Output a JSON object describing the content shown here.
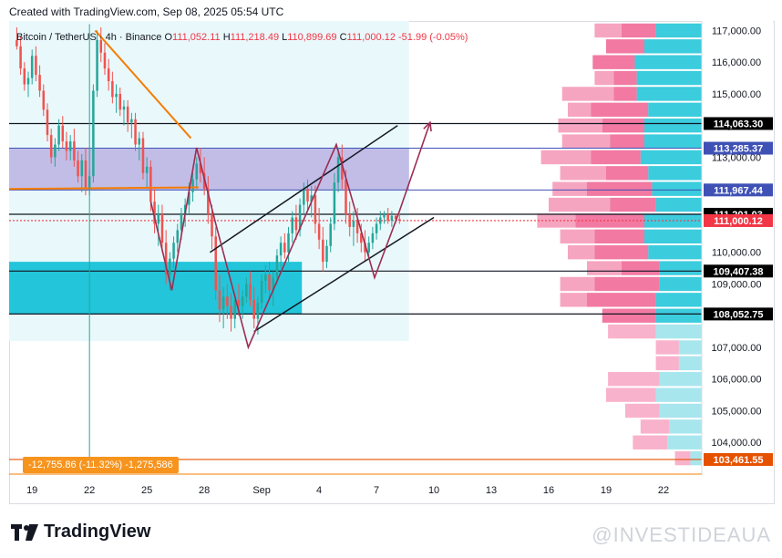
{
  "caption": "Created with TradingView.com, Sep 08, 2025 05:54 UTC",
  "legend": {
    "symbol": "Bitcoin / TetherUS · 4h · Binance",
    "open_label": "O",
    "open": "111,052.11",
    "high_label": "H",
    "high": "111,218.49",
    "low_label": "L",
    "low": "110,899.69",
    "close_label": "C",
    "close": "111,000.12",
    "change": "-51.99 (-0.05%)"
  },
  "drawdown": "-12,755.86 (-11.32%) -1,275,586",
  "brand": "TradingView",
  "watermark": "@INVESTIDEAUA",
  "colors": {
    "up": "#26a69a",
    "down": "#ef5350",
    "zone_purple": "#b3a9e0",
    "zone_cyan": "#00bcd4",
    "vp_pink": "#f06292",
    "vp_cyan": "#26c6da",
    "orange": "#f57c00",
    "brand_text": "#131722"
  },
  "chart_data": {
    "type": "candlestick",
    "y_axis": {
      "ylim": [
        103000,
        117300
      ],
      "tick_values": [
        104000,
        105000,
        106000,
        107000,
        108000,
        109000,
        110000,
        111000,
        112000,
        113000,
        114000,
        115000,
        116000,
        117000
      ],
      "tick_labels": [
        "104,000.00",
        "105,000.00",
        "106,000.00",
        "107,000.00",
        "108,000.00",
        "109,000.00",
        "110,000.00",
        "111,000.00",
        "112,000.00",
        "113,000.00",
        "114,000.00",
        "115,000.00",
        "116,000.00",
        "117,000.00"
      ]
    },
    "x_axis": {
      "tick_labels": [
        "19",
        "22",
        "25",
        "28",
        "Sep",
        "4",
        "7",
        "10",
        "13",
        "16",
        "19",
        "22"
      ],
      "tick_days": [
        0,
        3,
        6,
        9,
        12,
        15,
        18,
        21,
        24,
        27,
        30,
        33
      ],
      "xlim_days": [
        -1.2,
        35.0
      ],
      "last_candle_day": 19.2
    },
    "price_levels": [
      {
        "value": 114063.3,
        "label": "114,063.30",
        "color": "#131722"
      },
      {
        "value": 113285.37,
        "label": "113,285.37",
        "color": "#3f51b5"
      },
      {
        "value": 111967.44,
        "label": "111,967.44",
        "color": "#3f51b5"
      },
      {
        "value": 111201.03,
        "label": "111,201.03",
        "color": "#131722"
      },
      {
        "value": 111000.12,
        "label": "111,000.12",
        "color": "#f23645"
      },
      {
        "value": 109407.38,
        "label": "109,407.38",
        "color": "#131722"
      },
      {
        "value": 108052.75,
        "label": "108,052.75",
        "color": "#131722"
      },
      {
        "value": 103461.55,
        "label": "103,461.55",
        "color": "#e65100"
      }
    ],
    "zones": [
      {
        "name": "supply-zone",
        "from": 111967.44,
        "to": 113285.37,
        "start_day": -1.2,
        "end_day": 19.7,
        "color": "#b3a9e0"
      },
      {
        "name": "demand-zone",
        "from": 108052.75,
        "to": 109700,
        "start_day": -1.2,
        "end_day": 14.1,
        "color": "#00bcd4"
      }
    ],
    "candles": [
      {
        "day": -0.8,
        "o": 116700,
        "h": 117100,
        "l": 116400,
        "c": 116500
      },
      {
        "day": -0.6,
        "o": 116500,
        "h": 116800,
        "l": 115600,
        "c": 115800
      },
      {
        "day": -0.4,
        "o": 115800,
        "h": 116000,
        "l": 115100,
        "c": 115300
      },
      {
        "day": -0.2,
        "o": 115300,
        "h": 115700,
        "l": 114900,
        "c": 115500
      },
      {
        "day": 0.0,
        "o": 115500,
        "h": 116400,
        "l": 115300,
        "c": 116200
      },
      {
        "day": 0.2,
        "o": 116200,
        "h": 116500,
        "l": 115400,
        "c": 115600
      },
      {
        "day": 0.4,
        "o": 115600,
        "h": 115900,
        "l": 114900,
        "c": 115100
      },
      {
        "day": 0.6,
        "o": 115100,
        "h": 115300,
        "l": 114300,
        "c": 114500
      },
      {
        "day": 0.8,
        "o": 114500,
        "h": 114700,
        "l": 113500,
        "c": 113700
      },
      {
        "day": 1.0,
        "o": 113700,
        "h": 113900,
        "l": 112800,
        "c": 113000
      },
      {
        "day": 1.2,
        "o": 113000,
        "h": 113600,
        "l": 112700,
        "c": 113400
      },
      {
        "day": 1.4,
        "o": 113400,
        "h": 114200,
        "l": 113200,
        "c": 114000
      },
      {
        "day": 1.6,
        "o": 114000,
        "h": 114300,
        "l": 113300,
        "c": 113500
      },
      {
        "day": 1.8,
        "o": 113500,
        "h": 113800,
        "l": 112900,
        "c": 113200
      },
      {
        "day": 2.0,
        "o": 113200,
        "h": 113700,
        "l": 112900,
        "c": 113500
      },
      {
        "day": 2.2,
        "o": 113500,
        "h": 113900,
        "l": 112700,
        "c": 112900
      },
      {
        "day": 2.4,
        "o": 112900,
        "h": 113200,
        "l": 112200,
        "c": 112400
      },
      {
        "day": 2.6,
        "o": 112400,
        "h": 113100,
        "l": 111900,
        "c": 112900
      },
      {
        "day": 2.8,
        "o": 112900,
        "h": 113300,
        "l": 111800,
        "c": 112000
      },
      {
        "day": 3.0,
        "o": 112000,
        "h": 112600,
        "l": 111800,
        "c": 112400
      },
      {
        "day": 3.2,
        "o": 112400,
        "h": 115300,
        "l": 112200,
        "c": 115100
      },
      {
        "day": 3.4,
        "o": 115100,
        "h": 117000,
        "l": 114900,
        "c": 116700
      },
      {
        "day": 3.6,
        "o": 116700,
        "h": 117100,
        "l": 116000,
        "c": 116300
      },
      {
        "day": 3.8,
        "o": 116300,
        "h": 116600,
        "l": 115600,
        "c": 115800
      },
      {
        "day": 4.0,
        "o": 115800,
        "h": 116100,
        "l": 115100,
        "c": 115400
      },
      {
        "day": 4.2,
        "o": 115400,
        "h": 115700,
        "l": 114700,
        "c": 114900
      },
      {
        "day": 4.4,
        "o": 114900,
        "h": 115300,
        "l": 114400,
        "c": 115000
      },
      {
        "day": 4.6,
        "o": 115000,
        "h": 115200,
        "l": 114300,
        "c": 114500
      },
      {
        "day": 4.8,
        "o": 114500,
        "h": 114800,
        "l": 114000,
        "c": 114600
      },
      {
        "day": 5.0,
        "o": 114600,
        "h": 114800,
        "l": 113800,
        "c": 114100
      },
      {
        "day": 5.2,
        "o": 114100,
        "h": 114400,
        "l": 113600,
        "c": 114200
      },
      {
        "day": 5.4,
        "o": 114200,
        "h": 114400,
        "l": 113200,
        "c": 113400
      },
      {
        "day": 5.6,
        "o": 113400,
        "h": 113800,
        "l": 112900,
        "c": 113600
      },
      {
        "day": 5.8,
        "o": 113600,
        "h": 113800,
        "l": 112300,
        "c": 112500
      },
      {
        "day": 6.0,
        "o": 112500,
        "h": 113000,
        "l": 112000,
        "c": 112700
      },
      {
        "day": 6.2,
        "o": 112700,
        "h": 112900,
        "l": 111300,
        "c": 111600
      },
      {
        "day": 6.4,
        "o": 111600,
        "h": 112000,
        "l": 110600,
        "c": 110900
      },
      {
        "day": 6.6,
        "o": 110900,
        "h": 111500,
        "l": 110200,
        "c": 111200
      },
      {
        "day": 6.8,
        "o": 111200,
        "h": 111500,
        "l": 110000,
        "c": 110300
      },
      {
        "day": 7.0,
        "o": 110300,
        "h": 110700,
        "l": 109000,
        "c": 109300
      },
      {
        "day": 7.2,
        "o": 109300,
        "h": 110000,
        "l": 108800,
        "c": 109800
      },
      {
        "day": 7.4,
        "o": 109800,
        "h": 110500,
        "l": 109500,
        "c": 110300
      },
      {
        "day": 7.6,
        "o": 110300,
        "h": 110900,
        "l": 110000,
        "c": 110700
      },
      {
        "day": 7.8,
        "o": 110700,
        "h": 111400,
        "l": 110400,
        "c": 111200
      },
      {
        "day": 8.0,
        "o": 111200,
        "h": 111700,
        "l": 110800,
        "c": 111500
      },
      {
        "day": 8.2,
        "o": 111500,
        "h": 112200,
        "l": 111200,
        "c": 111900
      },
      {
        "day": 8.4,
        "o": 111900,
        "h": 112500,
        "l": 111600,
        "c": 112300
      },
      {
        "day": 8.6,
        "o": 112300,
        "h": 113000,
        "l": 112000,
        "c": 112800
      },
      {
        "day": 8.8,
        "o": 112800,
        "h": 113300,
        "l": 112200,
        "c": 112500
      },
      {
        "day": 9.0,
        "o": 112500,
        "h": 113000,
        "l": 111800,
        "c": 112000
      },
      {
        "day": 9.2,
        "o": 112000,
        "h": 112400,
        "l": 110900,
        "c": 111200
      },
      {
        "day": 9.4,
        "o": 111200,
        "h": 111500,
        "l": 110100,
        "c": 110500
      },
      {
        "day": 9.6,
        "o": 110500,
        "h": 110800,
        "l": 108500,
        "c": 108800
      },
      {
        "day": 9.8,
        "o": 108800,
        "h": 109300,
        "l": 107800,
        "c": 108200
      },
      {
        "day": 10.0,
        "o": 108200,
        "h": 108900,
        "l": 107600,
        "c": 108600
      },
      {
        "day": 10.2,
        "o": 108600,
        "h": 109000,
        "l": 107900,
        "c": 108300
      },
      {
        "day": 10.4,
        "o": 108300,
        "h": 108700,
        "l": 107500,
        "c": 107900
      },
      {
        "day": 10.6,
        "o": 107900,
        "h": 108700,
        "l": 107600,
        "c": 108500
      },
      {
        "day": 10.8,
        "o": 108500,
        "h": 109000,
        "l": 108000,
        "c": 108300
      },
      {
        "day": 11.0,
        "o": 108300,
        "h": 108800,
        "l": 107900,
        "c": 108600
      },
      {
        "day": 11.2,
        "o": 108600,
        "h": 109200,
        "l": 108400,
        "c": 109000
      },
      {
        "day": 11.4,
        "o": 109000,
        "h": 109400,
        "l": 108300,
        "c": 108500
      },
      {
        "day": 11.6,
        "o": 108500,
        "h": 108900,
        "l": 107600,
        "c": 107900
      },
      {
        "day": 11.8,
        "o": 107900,
        "h": 108600,
        "l": 107400,
        "c": 108400
      },
      {
        "day": 12.0,
        "o": 108400,
        "h": 109300,
        "l": 108200,
        "c": 109100
      },
      {
        "day": 12.2,
        "o": 109100,
        "h": 109600,
        "l": 108700,
        "c": 109300
      },
      {
        "day": 12.4,
        "o": 109300,
        "h": 109700,
        "l": 108500,
        "c": 108800
      },
      {
        "day": 12.6,
        "o": 108800,
        "h": 109400,
        "l": 108300,
        "c": 109200
      },
      {
        "day": 12.8,
        "o": 109200,
        "h": 110100,
        "l": 109000,
        "c": 109900
      },
      {
        "day": 13.0,
        "o": 109900,
        "h": 110500,
        "l": 109500,
        "c": 110300
      },
      {
        "day": 13.2,
        "o": 110300,
        "h": 110600,
        "l": 109800,
        "c": 110000
      },
      {
        "day": 13.4,
        "o": 110000,
        "h": 110800,
        "l": 109700,
        "c": 110600
      },
      {
        "day": 13.6,
        "o": 110600,
        "h": 111300,
        "l": 110300,
        "c": 111100
      },
      {
        "day": 13.8,
        "o": 111100,
        "h": 111500,
        "l": 110400,
        "c": 110700
      },
      {
        "day": 14.0,
        "o": 110700,
        "h": 111700,
        "l": 110500,
        "c": 111500
      },
      {
        "day": 14.2,
        "o": 111500,
        "h": 112200,
        "l": 111200,
        "c": 112000
      },
      {
        "day": 14.4,
        "o": 112000,
        "h": 112300,
        "l": 111300,
        "c": 111600
      },
      {
        "day": 14.6,
        "o": 111600,
        "h": 112100,
        "l": 111100,
        "c": 111800
      },
      {
        "day": 14.8,
        "o": 111800,
        "h": 112100,
        "l": 110600,
        "c": 110900
      },
      {
        "day": 15.0,
        "o": 110900,
        "h": 111400,
        "l": 110100,
        "c": 110400
      },
      {
        "day": 15.2,
        "o": 110400,
        "h": 110800,
        "l": 109400,
        "c": 109700
      },
      {
        "day": 15.4,
        "o": 109700,
        "h": 110400,
        "l": 109500,
        "c": 110200
      },
      {
        "day": 15.6,
        "o": 110200,
        "h": 111100,
        "l": 110000,
        "c": 110900
      },
      {
        "day": 15.8,
        "o": 110900,
        "h": 112500,
        "l": 110700,
        "c": 112200
      },
      {
        "day": 16.0,
        "o": 112200,
        "h": 113300,
        "l": 111900,
        "c": 113000
      },
      {
        "day": 16.2,
        "o": 113000,
        "h": 113400,
        "l": 112000,
        "c": 112300
      },
      {
        "day": 16.4,
        "o": 112300,
        "h": 112600,
        "l": 110900,
        "c": 111200
      },
      {
        "day": 16.6,
        "o": 111200,
        "h": 111600,
        "l": 110500,
        "c": 110800
      },
      {
        "day": 16.8,
        "o": 110800,
        "h": 111300,
        "l": 110200,
        "c": 111000
      },
      {
        "day": 17.0,
        "o": 111000,
        "h": 111400,
        "l": 110300,
        "c": 110600
      },
      {
        "day": 17.2,
        "o": 110600,
        "h": 110900,
        "l": 110000,
        "c": 110300
      },
      {
        "day": 17.4,
        "o": 110300,
        "h": 110700,
        "l": 109700,
        "c": 110000
      },
      {
        "day": 17.6,
        "o": 110000,
        "h": 110500,
        "l": 109800,
        "c": 110300
      },
      {
        "day": 17.8,
        "o": 110300,
        "h": 110800,
        "l": 110100,
        "c": 110600
      },
      {
        "day": 18.0,
        "o": 110600,
        "h": 111100,
        "l": 110400,
        "c": 110900
      },
      {
        "day": 18.2,
        "o": 110900,
        "h": 111300,
        "l": 110700,
        "c": 111100
      },
      {
        "day": 18.4,
        "o": 111100,
        "h": 111300,
        "l": 110900,
        "c": 111200
      },
      {
        "day": 18.6,
        "o": 111200,
        "h": 111400,
        "l": 110900,
        "c": 111000
      },
      {
        "day": 18.8,
        "o": 111000,
        "h": 111300,
        "l": 110800,
        "c": 111150
      },
      {
        "day": 19.0,
        "o": 111150,
        "h": 111220,
        "l": 110900,
        "c": 111052
      },
      {
        "day": 19.2,
        "o": 111052.11,
        "h": 111218.49,
        "l": 110899.69,
        "c": 111000.12
      }
    ],
    "annotations": {
      "orange_downtrend": [
        [
          3.3,
          117000
        ],
        [
          8.3,
          113600
        ]
      ],
      "orange_shelf": [
        [
          -1.2,
          112000
        ],
        [
          8.7,
          112050
        ]
      ],
      "vertical_line_day": 3.0,
      "channel_upper": [
        [
          9.3,
          110000
        ],
        [
          19.1,
          114000
        ]
      ],
      "channel_lower": [
        [
          11.6,
          107500
        ],
        [
          21.0,
          111100
        ]
      ],
      "zigzag": [
        [
          6.2,
          111600
        ],
        [
          7.3,
          108800
        ],
        [
          8.6,
          113300
        ],
        [
          9.6,
          110900
        ],
        [
          11.3,
          107000
        ],
        [
          15.9,
          113400
        ],
        [
          17.9,
          109200
        ],
        [
          19.2,
          111300
        ],
        [
          20.8,
          114100
        ]
      ]
    },
    "volume_profile": {
      "bin_step": 500,
      "bins": [
        {
          "price": 117000,
          "a": 0.14,
          "b": 0.18,
          "c": 0.24
        },
        {
          "price": 116500,
          "a": 0.0,
          "b": 0.2,
          "c": 0.3
        },
        {
          "price": 116000,
          "a": 0.0,
          "b": 0.22,
          "c": 0.35
        },
        {
          "price": 115500,
          "a": 0.1,
          "b": 0.12,
          "c": 0.34
        },
        {
          "price": 115000,
          "a": 0.27,
          "b": 0.12,
          "c": 0.34
        },
        {
          "price": 114500,
          "a": 0.12,
          "b": 0.3,
          "c": 0.28
        },
        {
          "price": 114000,
          "a": 0.23,
          "b": 0.22,
          "c": 0.3
        },
        {
          "price": 113500,
          "a": 0.25,
          "b": 0.18,
          "c": 0.3
        },
        {
          "price": 113000,
          "a": 0.26,
          "b": 0.26,
          "c": 0.32
        },
        {
          "price": 112500,
          "a": 0.24,
          "b": 0.22,
          "c": 0.28
        },
        {
          "price": 112000,
          "a": 0.18,
          "b": 0.34,
          "c": 0.26
        },
        {
          "price": 111500,
          "a": 0.32,
          "b": 0.24,
          "c": 0.24
        },
        {
          "price": 111000,
          "a": 0.2,
          "b": 0.36,
          "c": 0.3
        },
        {
          "price": 110500,
          "a": 0.18,
          "b": 0.26,
          "c": 0.3
        },
        {
          "price": 110000,
          "a": 0.14,
          "b": 0.28,
          "c": 0.28
        },
        {
          "price": 109500,
          "a": 0.18,
          "b": 0.2,
          "c": 0.22
        },
        {
          "price": 109000,
          "a": 0.18,
          "b": 0.34,
          "c": 0.22
        },
        {
          "price": 108500,
          "a": 0.14,
          "b": 0.36,
          "c": 0.24
        },
        {
          "price": 108000,
          "a": 0.0,
          "b": 0.28,
          "c": 0.24
        },
        {
          "price": 107500,
          "a": 0.0,
          "b": 0.25,
          "c": 0.24
        },
        {
          "price": 107000,
          "a": 0.0,
          "b": 0.12,
          "c": 0.12
        },
        {
          "price": 106500,
          "a": 0.0,
          "b": 0.12,
          "c": 0.12
        },
        {
          "price": 106000,
          "a": 0.0,
          "b": 0.27,
          "c": 0.22
        },
        {
          "price": 105500,
          "a": 0.0,
          "b": 0.26,
          "c": 0.24
        },
        {
          "price": 105000,
          "a": 0.0,
          "b": 0.18,
          "c": 0.22
        },
        {
          "price": 104500,
          "a": 0.0,
          "b": 0.15,
          "c": 0.17
        },
        {
          "price": 104000,
          "a": 0.0,
          "b": 0.18,
          "c": 0.18
        },
        {
          "price": 103500,
          "a": 0.0,
          "b": 0.08,
          "c": 0.06
        }
      ]
    }
  }
}
